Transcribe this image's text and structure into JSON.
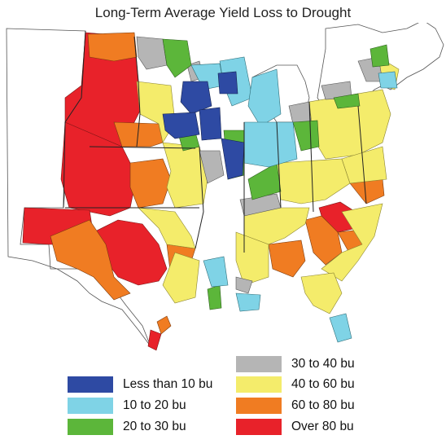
{
  "title": "Long-Term Average Yield Loss to Drought",
  "legend": [
    {
      "label": "Less than 10 bu",
      "color": "#2e4aa3"
    },
    {
      "label": "10 to 20 bu",
      "color": "#7fd3e6"
    },
    {
      "label": "20 to 30 bu",
      "color": "#5cb63a"
    },
    {
      "label": "30 to 40 bu",
      "color": "#b5b5b5"
    },
    {
      "label": "40 to 60 bu",
      "color": "#f4ec6b"
    },
    {
      "label": "60 to 80 bu",
      "color": "#f07c22"
    },
    {
      "label": "Over 80 bu",
      "color": "#e8222a"
    }
  ]
}
